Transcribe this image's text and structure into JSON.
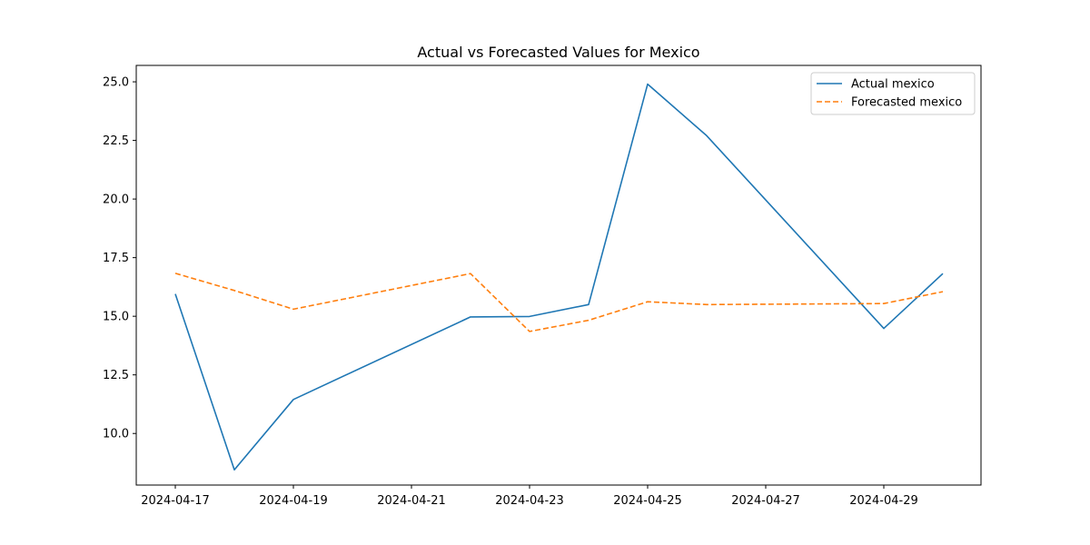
{
  "chart_data": {
    "type": "line",
    "title": "Actual vs Forecasted Values for Mexico",
    "xlabel": "",
    "ylabel": "",
    "x_dates": [
      "2024-04-17",
      "2024-04-18",
      "2024-04-19",
      "2024-04-22",
      "2024-04-23",
      "2024-04-24",
      "2024-04-25",
      "2024-04-26",
      "2024-04-29",
      "2024-04-30"
    ],
    "x_ticks": [
      "2024-04-17",
      "2024-04-19",
      "2024-04-21",
      "2024-04-23",
      "2024-04-25",
      "2024-04-27",
      "2024-04-29"
    ],
    "y_ticks": [
      10.0,
      12.5,
      15.0,
      17.5,
      20.0,
      22.5,
      25.0
    ],
    "y_tick_labels": [
      "10.0",
      "12.5",
      "15.0",
      "17.5",
      "20.0",
      "22.5",
      "25.0"
    ],
    "xlim": [
      "2024-04-16",
      "2024-04-30"
    ],
    "ylim": [
      7.8,
      25.7
    ],
    "grid": false,
    "legend_position": "upper right",
    "series": [
      {
        "name": "Actual mexico",
        "color": "#1f77b4",
        "dash": "solid",
        "values": [
          15.95,
          8.45,
          11.45,
          14.97,
          14.99,
          15.5,
          24.9,
          22.7,
          14.48,
          16.82
        ]
      },
      {
        "name": "Forecasted mexico",
        "color": "#ff7f0e",
        "dash": "dashed",
        "values": [
          16.83,
          16.1,
          15.3,
          16.82,
          14.35,
          14.83,
          15.62,
          15.5,
          15.54,
          16.05
        ]
      }
    ]
  }
}
